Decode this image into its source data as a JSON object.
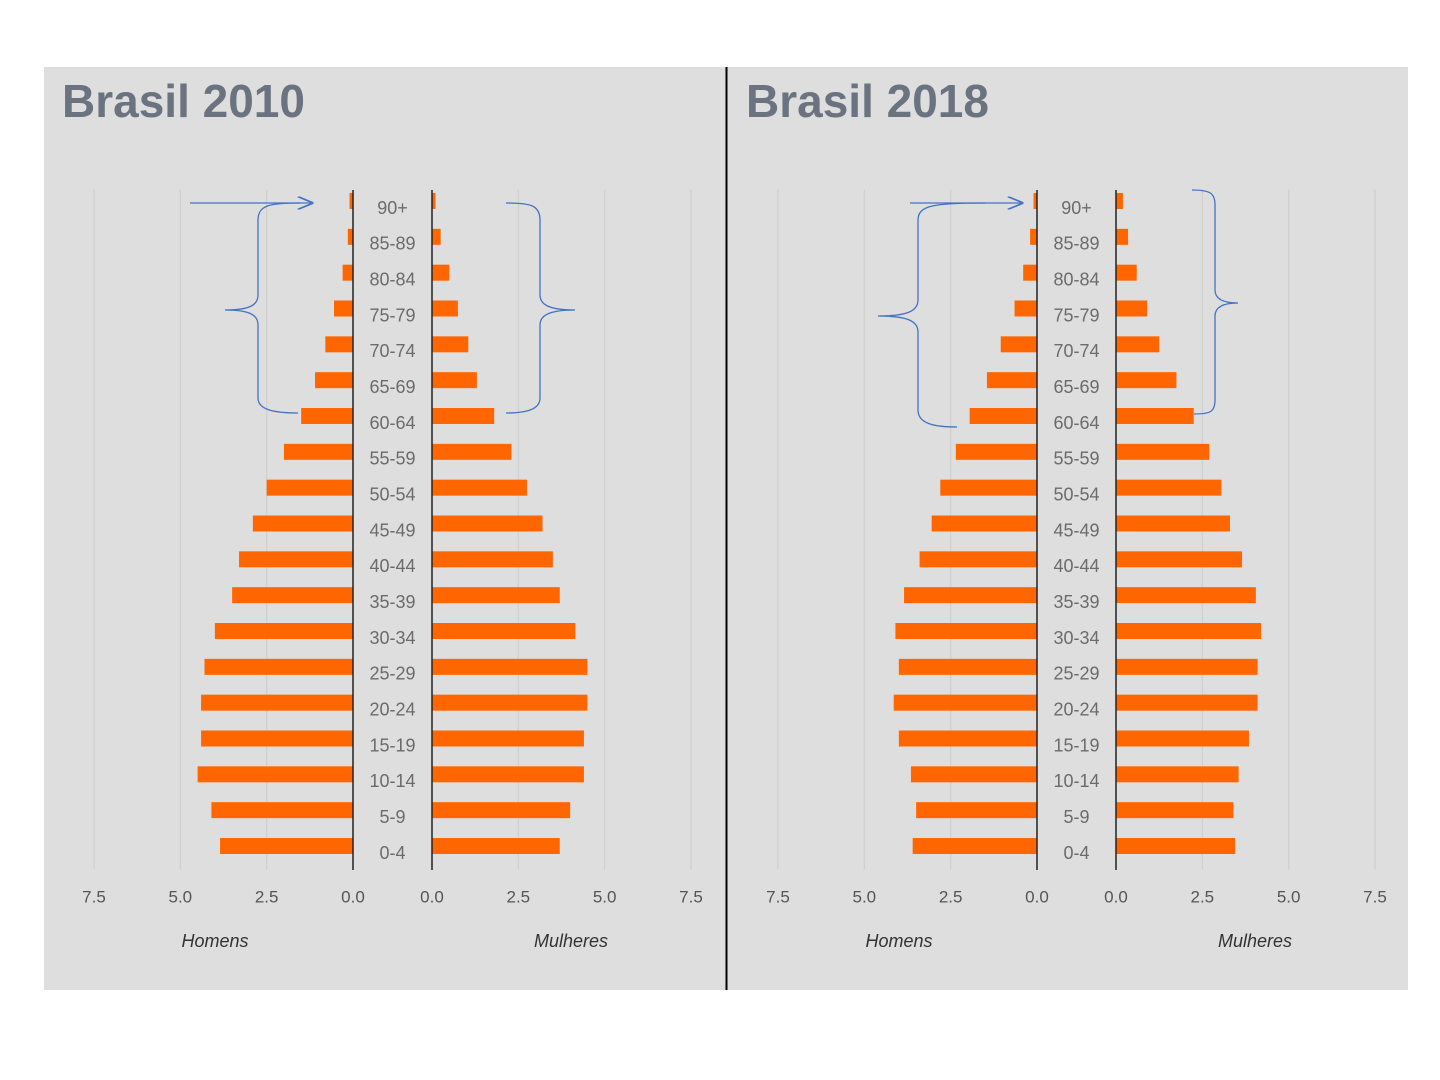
{
  "chart_data": [
    {
      "type": "pyramid",
      "title": "Brasil 2010",
      "categories": [
        "90+",
        "85-89",
        "80-84",
        "75-79",
        "70-74",
        "65-69",
        "60-64",
        "55-59",
        "50-54",
        "45-49",
        "40-44",
        "35-39",
        "30-34",
        "25-29",
        "20-24",
        "15-19",
        "10-14",
        "5-9",
        "0-4"
      ],
      "series": [
        {
          "name": "Homens",
          "color": "#ff6600",
          "values": [
            0.1,
            0.15,
            0.3,
            0.55,
            0.8,
            1.1,
            1.5,
            2.0,
            2.5,
            2.9,
            3.3,
            3.5,
            4.0,
            4.3,
            4.4,
            4.4,
            4.5,
            4.1,
            3.85
          ]
        },
        {
          "name": "Mulheres",
          "color": "#ff6600",
          "values": [
            0.1,
            0.25,
            0.5,
            0.75,
            1.05,
            1.3,
            1.8,
            2.3,
            2.75,
            3.2,
            3.5,
            3.7,
            4.15,
            4.5,
            4.5,
            4.4,
            4.4,
            4.0,
            3.7
          ]
        }
      ],
      "xlim": [
        0,
        7.5
      ],
      "xticks": [
        {
          "value": 0,
          "label": "0.0"
        },
        2.5,
        {
          "value": 5,
          "label": "5.0"
        },
        7.5
      ],
      "grid": true
    },
    {
      "type": "pyramid",
      "title": "Brasil 2018",
      "categories": [
        "90+",
        "85-89",
        "80-84",
        "75-79",
        "70-74",
        "65-69",
        "60-64",
        "55-59",
        "50-54",
        "45-49",
        "40-44",
        "35-39",
        "30-34",
        "25-29",
        "20-24",
        "15-19",
        "10-14",
        "5-9",
        "0-4"
      ],
      "series": [
        {
          "name": "Homens",
          "color": "#ff6600",
          "values": [
            0.1,
            0.2,
            0.4,
            0.65,
            1.05,
            1.45,
            1.95,
            2.35,
            2.8,
            3.05,
            3.4,
            3.85,
            4.1,
            4.0,
            4.15,
            4.0,
            3.65,
            3.5,
            3.6
          ]
        },
        {
          "name": "Mulheres",
          "color": "#ff6600",
          "values": [
            0.2,
            0.35,
            0.6,
            0.9,
            1.25,
            1.75,
            2.25,
            2.7,
            3.05,
            3.3,
            3.65,
            4.05,
            4.2,
            4.1,
            4.1,
            3.85,
            3.55,
            3.4,
            3.45
          ]
        }
      ],
      "xlim": [
        0,
        7.5
      ],
      "xticks": [
        {
          "value": 0,
          "label": "0.0"
        },
        2.5,
        {
          "value": 5,
          "label": "5.0"
        },
        7.5
      ],
      "grid": true
    }
  ]
}
